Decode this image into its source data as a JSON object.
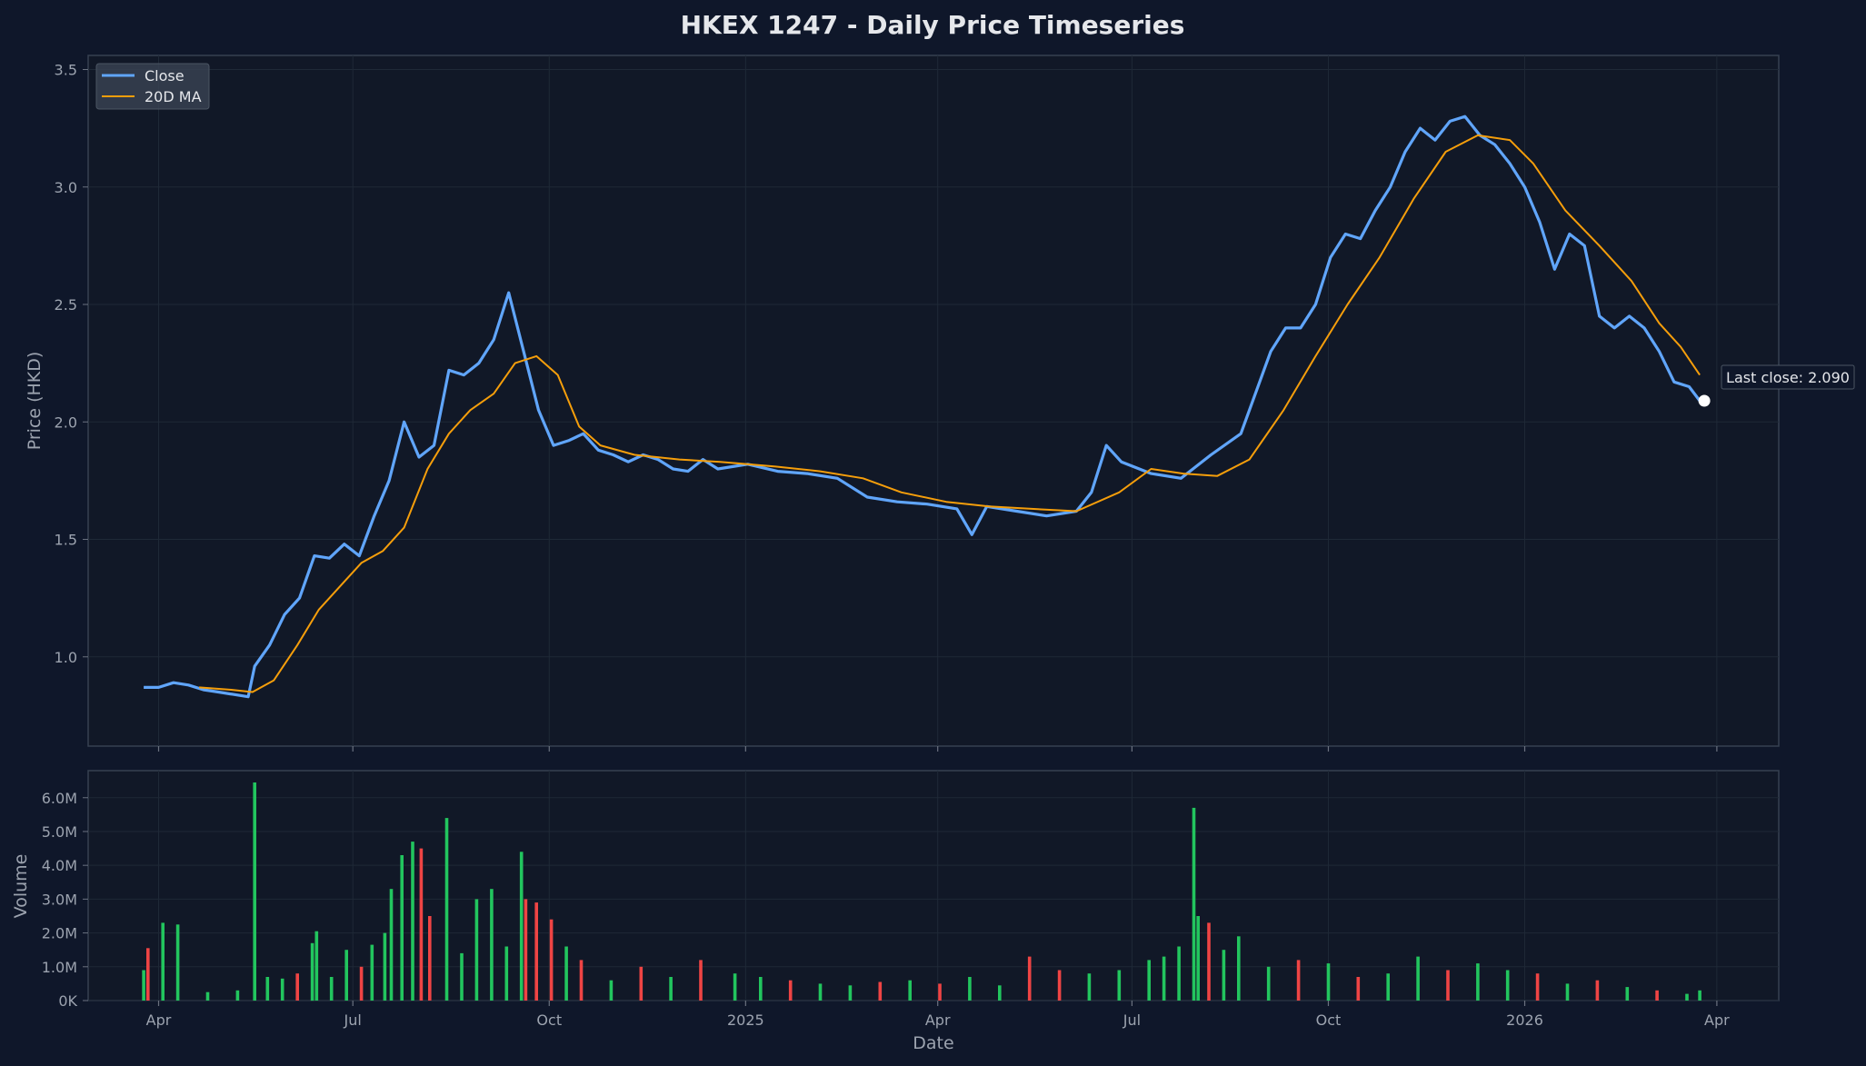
{
  "chart_data": [
    {
      "type": "line",
      "title": "HKEX 1247 - Daily Price Timeseries",
      "xlabel": "",
      "ylabel": "Price (HKD)",
      "ylim": [
        0.62,
        3.56
      ],
      "xlim": [
        "2024-02-28",
        "2026-04-30"
      ],
      "grid": true,
      "legend": "top-left",
      "x_ticks": [
        {
          "date": "2024-04-01",
          "label": "Apr"
        },
        {
          "date": "2024-07-01",
          "label": "Jul"
        },
        {
          "date": "2024-10-01",
          "label": "Oct"
        },
        {
          "date": "2025-01-01",
          "label": "2025"
        },
        {
          "date": "2025-04-01",
          "label": "Apr"
        },
        {
          "date": "2025-07-01",
          "label": "Jul"
        },
        {
          "date": "2025-10-01",
          "label": "Oct"
        },
        {
          "date": "2026-01-01",
          "label": "2026"
        },
        {
          "date": "2026-04-01",
          "label": "Apr"
        }
      ],
      "y_ticks": [
        1.0,
        1.5,
        2.0,
        2.5,
        3.0,
        3.5
      ],
      "series": [
        {
          "name": "Close",
          "color": "#60a5fa",
          "points": [
            [
              "2024-03-25",
              0.87
            ],
            [
              "2024-04-01",
              0.87
            ],
            [
              "2024-04-08",
              0.89
            ],
            [
              "2024-04-15",
              0.88
            ],
            [
              "2024-04-22",
              0.86
            ],
            [
              "2024-04-29",
              0.85
            ],
            [
              "2024-05-06",
              0.84
            ],
            [
              "2024-05-13",
              0.83
            ],
            [
              "2024-05-16",
              0.96
            ],
            [
              "2024-05-23",
              1.05
            ],
            [
              "2024-05-30",
              1.18
            ],
            [
              "2024-06-06",
              1.25
            ],
            [
              "2024-06-13",
              1.43
            ],
            [
              "2024-06-20",
              1.42
            ],
            [
              "2024-06-27",
              1.48
            ],
            [
              "2024-07-04",
              1.43
            ],
            [
              "2024-07-11",
              1.6
            ],
            [
              "2024-07-18",
              1.75
            ],
            [
              "2024-07-25",
              2.0
            ],
            [
              "2024-08-01",
              1.85
            ],
            [
              "2024-08-08",
              1.9
            ],
            [
              "2024-08-15",
              2.22
            ],
            [
              "2024-08-22",
              2.2
            ],
            [
              "2024-08-29",
              2.25
            ],
            [
              "2024-09-05",
              2.35
            ],
            [
              "2024-09-12",
              2.55
            ],
            [
              "2024-09-19",
              2.3
            ],
            [
              "2024-09-26",
              2.05
            ],
            [
              "2024-10-03",
              1.9
            ],
            [
              "2024-10-10",
              1.92
            ],
            [
              "2024-10-17",
              1.95
            ],
            [
              "2024-10-24",
              1.88
            ],
            [
              "2024-10-31",
              1.86
            ],
            [
              "2024-11-07",
              1.83
            ],
            [
              "2024-11-14",
              1.86
            ],
            [
              "2024-11-21",
              1.84
            ],
            [
              "2024-11-28",
              1.8
            ],
            [
              "2024-12-05",
              1.79
            ],
            [
              "2024-12-12",
              1.84
            ],
            [
              "2024-12-19",
              1.8
            ],
            [
              "2025-01-02",
              1.82
            ],
            [
              "2025-01-16",
              1.79
            ],
            [
              "2025-01-30",
              1.78
            ],
            [
              "2025-02-13",
              1.76
            ],
            [
              "2025-02-27",
              1.68
            ],
            [
              "2025-03-13",
              1.66
            ],
            [
              "2025-03-27",
              1.65
            ],
            [
              "2025-04-10",
              1.63
            ],
            [
              "2025-04-17",
              1.52
            ],
            [
              "2025-04-24",
              1.64
            ],
            [
              "2025-05-08",
              1.62
            ],
            [
              "2025-05-22",
              1.6
            ],
            [
              "2025-06-05",
              1.62
            ],
            [
              "2025-06-12",
              1.7
            ],
            [
              "2025-06-19",
              1.9
            ],
            [
              "2025-06-26",
              1.83
            ],
            [
              "2025-07-10",
              1.78
            ],
            [
              "2025-07-24",
              1.76
            ],
            [
              "2025-08-07",
              1.86
            ],
            [
              "2025-08-21",
              1.95
            ],
            [
              "2025-09-04",
              2.3
            ],
            [
              "2025-09-11",
              2.4
            ],
            [
              "2025-09-18",
              2.4
            ],
            [
              "2025-09-25",
              2.5
            ],
            [
              "2025-10-02",
              2.7
            ],
            [
              "2025-10-09",
              2.8
            ],
            [
              "2025-10-16",
              2.78
            ],
            [
              "2025-10-23",
              2.9
            ],
            [
              "2025-10-30",
              3.0
            ],
            [
              "2025-11-06",
              3.15
            ],
            [
              "2025-11-13",
              3.25
            ],
            [
              "2025-11-20",
              3.2
            ],
            [
              "2025-11-27",
              3.28
            ],
            [
              "2025-12-04",
              3.3
            ],
            [
              "2025-12-11",
              3.22
            ],
            [
              "2025-12-18",
              3.18
            ],
            [
              "2025-12-25",
              3.1
            ],
            [
              "2026-01-01",
              3.0
            ],
            [
              "2026-01-08",
              2.85
            ],
            [
              "2026-01-15",
              2.65
            ],
            [
              "2026-01-22",
              2.8
            ],
            [
              "2026-01-29",
              2.75
            ],
            [
              "2026-02-05",
              2.45
            ],
            [
              "2026-02-12",
              2.4
            ],
            [
              "2026-02-19",
              2.45
            ],
            [
              "2026-02-26",
              2.4
            ],
            [
              "2026-03-05",
              2.3
            ],
            [
              "2026-03-12",
              2.17
            ],
            [
              "2026-03-19",
              2.15
            ],
            [
              "2026-03-24",
              2.09
            ]
          ]
        },
        {
          "name": "20D MA",
          "color": "#f59e0b",
          "points": [
            [
              "2024-04-20",
              0.87
            ],
            [
              "2024-05-05",
              0.86
            ],
            [
              "2024-05-15",
              0.85
            ],
            [
              "2024-05-25",
              0.9
            ],
            [
              "2024-06-05",
              1.05
            ],
            [
              "2024-06-15",
              1.2
            ],
            [
              "2024-06-25",
              1.3
            ],
            [
              "2024-07-05",
              1.4
            ],
            [
              "2024-07-15",
              1.45
            ],
            [
              "2024-07-25",
              1.55
            ],
            [
              "2024-08-05",
              1.8
            ],
            [
              "2024-08-15",
              1.95
            ],
            [
              "2024-08-25",
              2.05
            ],
            [
              "2024-09-05",
              2.12
            ],
            [
              "2024-09-15",
              2.25
            ],
            [
              "2024-09-25",
              2.28
            ],
            [
              "2024-10-05",
              2.2
            ],
            [
              "2024-10-15",
              1.98
            ],
            [
              "2024-10-25",
              1.9
            ],
            [
              "2024-11-10",
              1.86
            ],
            [
              "2024-12-01",
              1.84
            ],
            [
              "2024-12-20",
              1.83
            ],
            [
              "2025-01-15",
              1.81
            ],
            [
              "2025-02-05",
              1.79
            ],
            [
              "2025-02-25",
              1.76
            ],
            [
              "2025-03-15",
              1.7
            ],
            [
              "2025-04-05",
              1.66
            ],
            [
              "2025-04-25",
              1.64
            ],
            [
              "2025-05-15",
              1.63
            ],
            [
              "2025-06-05",
              1.62
            ],
            [
              "2025-06-25",
              1.7
            ],
            [
              "2025-07-10",
              1.8
            ],
            [
              "2025-07-25",
              1.78
            ],
            [
              "2025-08-10",
              1.77
            ],
            [
              "2025-08-25",
              1.84
            ],
            [
              "2025-09-10",
              2.05
            ],
            [
              "2025-09-25",
              2.28
            ],
            [
              "2025-10-10",
              2.5
            ],
            [
              "2025-10-25",
              2.7
            ],
            [
              "2025-11-10",
              2.95
            ],
            [
              "2025-11-25",
              3.15
            ],
            [
              "2025-12-10",
              3.22
            ],
            [
              "2025-12-25",
              3.2
            ],
            [
              "2026-01-05",
              3.1
            ],
            [
              "2026-01-20",
              2.9
            ],
            [
              "2026-02-05",
              2.75
            ],
            [
              "2026-02-20",
              2.6
            ],
            [
              "2026-03-05",
              2.42
            ],
            [
              "2026-03-15",
              2.32
            ],
            [
              "2026-03-24",
              2.2
            ]
          ]
        }
      ],
      "annotations": [
        {
          "text": "Last close: 2.090",
          "date": "2026-03-24",
          "value": 2.09
        }
      ]
    },
    {
      "type": "bar",
      "xlabel": "Date",
      "ylabel": "Volume",
      "ylim": [
        0,
        6800000
      ],
      "y_ticks": [
        {
          "value": 0,
          "label": "0K"
        },
        {
          "value": 1000000,
          "label": "1.0M"
        },
        {
          "value": 2000000,
          "label": "2.0M"
        },
        {
          "value": 3000000,
          "label": "3.0M"
        },
        {
          "value": 4000000,
          "label": "4.0M"
        },
        {
          "value": 5000000,
          "label": "5.0M"
        },
        {
          "value": 6000000,
          "label": "6.0M"
        }
      ],
      "up_color": "#22c55e",
      "down_color": "#ef4444",
      "bars": [
        [
          "2024-03-25",
          900000,
          "up"
        ],
        [
          "2024-03-27",
          1550000,
          "down"
        ],
        [
          "2024-04-03",
          2300000,
          "up"
        ],
        [
          "2024-04-10",
          2250000,
          "up"
        ],
        [
          "2024-04-24",
          250000,
          "up"
        ],
        [
          "2024-05-08",
          300000,
          "up"
        ],
        [
          "2024-05-16",
          6450000,
          "up"
        ],
        [
          "2024-05-22",
          700000,
          "up"
        ],
        [
          "2024-05-29",
          650000,
          "up"
        ],
        [
          "2024-06-05",
          800000,
          "down"
        ],
        [
          "2024-06-12",
          1700000,
          "up"
        ],
        [
          "2024-06-14",
          2050000,
          "up"
        ],
        [
          "2024-06-21",
          700000,
          "up"
        ],
        [
          "2024-06-28",
          1500000,
          "up"
        ],
        [
          "2024-07-05",
          1000000,
          "down"
        ],
        [
          "2024-07-10",
          1650000,
          "up"
        ],
        [
          "2024-07-16",
          2000000,
          "up"
        ],
        [
          "2024-07-19",
          3300000,
          "up"
        ],
        [
          "2024-07-24",
          4300000,
          "up"
        ],
        [
          "2024-07-29",
          4700000,
          "up"
        ],
        [
          "2024-08-02",
          4500000,
          "down"
        ],
        [
          "2024-08-06",
          2500000,
          "down"
        ],
        [
          "2024-08-14",
          5400000,
          "up"
        ],
        [
          "2024-08-21",
          1400000,
          "up"
        ],
        [
          "2024-08-28",
          3000000,
          "up"
        ],
        [
          "2024-09-04",
          3300000,
          "up"
        ],
        [
          "2024-09-11",
          1600000,
          "up"
        ],
        [
          "2024-09-18",
          4400000,
          "up"
        ],
        [
          "2024-09-20",
          3000000,
          "down"
        ],
        [
          "2024-09-25",
          2900000,
          "down"
        ],
        [
          "2024-10-02",
          2400000,
          "down"
        ],
        [
          "2024-10-09",
          1600000,
          "up"
        ],
        [
          "2024-10-16",
          1200000,
          "down"
        ],
        [
          "2024-10-30",
          600000,
          "up"
        ],
        [
          "2024-11-13",
          1000000,
          "down"
        ],
        [
          "2024-11-27",
          700000,
          "up"
        ],
        [
          "2024-12-11",
          1200000,
          "down"
        ],
        [
          "2024-12-27",
          800000,
          "up"
        ],
        [
          "2025-01-08",
          700000,
          "up"
        ],
        [
          "2025-01-22",
          600000,
          "down"
        ],
        [
          "2025-02-05",
          500000,
          "up"
        ],
        [
          "2025-02-19",
          450000,
          "up"
        ],
        [
          "2025-03-05",
          550000,
          "down"
        ],
        [
          "2025-03-19",
          600000,
          "up"
        ],
        [
          "2025-04-02",
          500000,
          "down"
        ],
        [
          "2025-04-16",
          700000,
          "up"
        ],
        [
          "2025-04-30",
          450000,
          "up"
        ],
        [
          "2025-05-14",
          1300000,
          "down"
        ],
        [
          "2025-05-28",
          900000,
          "down"
        ],
        [
          "2025-06-11",
          800000,
          "up"
        ],
        [
          "2025-06-25",
          900000,
          "up"
        ],
        [
          "2025-07-09",
          1200000,
          "up"
        ],
        [
          "2025-07-16",
          1300000,
          "up"
        ],
        [
          "2025-07-23",
          1600000,
          "up"
        ],
        [
          "2025-07-30",
          5700000,
          "up"
        ],
        [
          "2025-08-01",
          2500000,
          "up"
        ],
        [
          "2025-08-06",
          2300000,
          "down"
        ],
        [
          "2025-08-13",
          1500000,
          "up"
        ],
        [
          "2025-08-20",
          1900000,
          "up"
        ],
        [
          "2025-09-03",
          1000000,
          "up"
        ],
        [
          "2025-09-17",
          1200000,
          "down"
        ],
        [
          "2025-10-01",
          1100000,
          "up"
        ],
        [
          "2025-10-15",
          700000,
          "down"
        ],
        [
          "2025-10-29",
          800000,
          "up"
        ],
        [
          "2025-11-12",
          1300000,
          "up"
        ],
        [
          "2025-11-26",
          900000,
          "down"
        ],
        [
          "2025-12-10",
          1100000,
          "up"
        ],
        [
          "2025-12-24",
          900000,
          "up"
        ],
        [
          "2026-01-07",
          800000,
          "down"
        ],
        [
          "2026-01-21",
          500000,
          "up"
        ],
        [
          "2026-02-04",
          600000,
          "down"
        ],
        [
          "2026-02-18",
          400000,
          "up"
        ],
        [
          "2026-03-04",
          300000,
          "down"
        ],
        [
          "2026-03-18",
          200000,
          "up"
        ],
        [
          "2026-03-24",
          300000,
          "up"
        ]
      ]
    }
  ]
}
